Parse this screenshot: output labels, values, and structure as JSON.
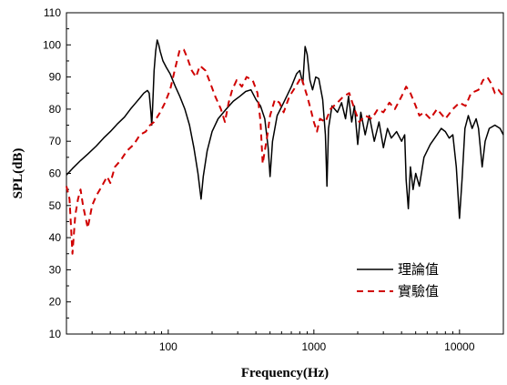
{
  "chart_data": {
    "type": "line",
    "xscale": "log",
    "xlabel": "Frequency(Hz)",
    "ylabel": "SPL(dB)",
    "xlim": [
      20,
      20000
    ],
    "ylim": [
      10,
      110
    ],
    "x_ticks": [
      100,
      1000,
      10000
    ],
    "x_tick_labels": [
      "100",
      "1000",
      "10000"
    ],
    "y_ticks": [
      10,
      20,
      30,
      40,
      50,
      60,
      70,
      80,
      90,
      100,
      110
    ],
    "y_tick_labels": [
      "10",
      "20",
      "30",
      "40",
      "50",
      "60",
      "70",
      "80",
      "90",
      "100",
      "110"
    ],
    "grid": false,
    "legend_position": "right",
    "series": [
      {
        "name": "理論值",
        "color": "#000000",
        "style": "solid",
        "points": [
          [
            20,
            59.5
          ],
          [
            22,
            61.5
          ],
          [
            25,
            64
          ],
          [
            28,
            66
          ],
          [
            32,
            68.5
          ],
          [
            36,
            71
          ],
          [
            40,
            73
          ],
          [
            45,
            75.5
          ],
          [
            50,
            77.5
          ],
          [
            55,
            80
          ],
          [
            60,
            82
          ],
          [
            64,
            83.5
          ],
          [
            68,
            85
          ],
          [
            72,
            85.8
          ],
          [
            74,
            85
          ],
          [
            76,
            79
          ],
          [
            77,
            75
          ],
          [
            78,
            80
          ],
          [
            80,
            92
          ],
          [
            82,
            98
          ],
          [
            84,
            101.5
          ],
          [
            86,
            100
          ],
          [
            88,
            98
          ],
          [
            92,
            95
          ],
          [
            97,
            93
          ],
          [
            103,
            91
          ],
          [
            112,
            87
          ],
          [
            120,
            84
          ],
          [
            130,
            80
          ],
          [
            140,
            75
          ],
          [
            150,
            68
          ],
          [
            160,
            60
          ],
          [
            168,
            52
          ],
          [
            174,
            59
          ],
          [
            185,
            67
          ],
          [
            200,
            73
          ],
          [
            220,
            77
          ],
          [
            250,
            80
          ],
          [
            280,
            82.5
          ],
          [
            310,
            84
          ],
          [
            340,
            85.5
          ],
          [
            370,
            86
          ],
          [
            400,
            83
          ],
          [
            430,
            81
          ],
          [
            460,
            77
          ],
          [
            485,
            68
          ],
          [
            500,
            59
          ],
          [
            520,
            70
          ],
          [
            560,
            78
          ],
          [
            620,
            82
          ],
          [
            700,
            87
          ],
          [
            760,
            91
          ],
          [
            800,
            92
          ],
          [
            840,
            88
          ],
          [
            870,
            99.5
          ],
          [
            900,
            97
          ],
          [
            940,
            89
          ],
          [
            980,
            86
          ],
          [
            1030,
            90
          ],
          [
            1080,
            89.5
          ],
          [
            1150,
            83
          ],
          [
            1200,
            72
          ],
          [
            1230,
            56
          ],
          [
            1260,
            74
          ],
          [
            1330,
            81
          ],
          [
            1450,
            79
          ],
          [
            1550,
            82
          ],
          [
            1650,
            77
          ],
          [
            1730,
            84
          ],
          [
            1820,
            76
          ],
          [
            1900,
            81
          ],
          [
            2000,
            69
          ],
          [
            2100,
            79
          ],
          [
            2250,
            72
          ],
          [
            2400,
            78
          ],
          [
            2600,
            70
          ],
          [
            2800,
            76
          ],
          [
            3000,
            68
          ],
          [
            3200,
            74
          ],
          [
            3400,
            71
          ],
          [
            3700,
            73
          ],
          [
            4000,
            70
          ],
          [
            4200,
            72
          ],
          [
            4300,
            58
          ],
          [
            4450,
            49
          ],
          [
            4600,
            62
          ],
          [
            4800,
            55
          ],
          [
            5000,
            60
          ],
          [
            5300,
            56
          ],
          [
            5700,
            65
          ],
          [
            6300,
            69
          ],
          [
            7000,
            72
          ],
          [
            7500,
            74
          ],
          [
            8000,
            73
          ],
          [
            8500,
            71
          ],
          [
            9000,
            72
          ],
          [
            9500,
            62
          ],
          [
            10000,
            46
          ],
          [
            10400,
            58
          ],
          [
            10900,
            74
          ],
          [
            11500,
            78
          ],
          [
            12200,
            74
          ],
          [
            13000,
            77
          ],
          [
            13500,
            74
          ],
          [
            14300,
            62
          ],
          [
            15000,
            70
          ],
          [
            16000,
            74
          ],
          [
            17500,
            75
          ],
          [
            19000,
            74
          ],
          [
            20000,
            72
          ]
        ]
      },
      {
        "name": "實驗值",
        "color": "#d00000",
        "style": "dashed",
        "points": [
          [
            20,
            56
          ],
          [
            21,
            52
          ],
          [
            22,
            35
          ],
          [
            23,
            47
          ],
          [
            24,
            52
          ],
          [
            25,
            55
          ],
          [
            26,
            50
          ],
          [
            28,
            43
          ],
          [
            30,
            50
          ],
          [
            32,
            53
          ],
          [
            35,
            56
          ],
          [
            38,
            59
          ],
          [
            40,
            57
          ],
          [
            43,
            62
          ],
          [
            47,
            64
          ],
          [
            52,
            67
          ],
          [
            58,
            69
          ],
          [
            64,
            72
          ],
          [
            70,
            73
          ],
          [
            75,
            75
          ],
          [
            80,
            76
          ],
          [
            88,
            79
          ],
          [
            95,
            82
          ],
          [
            103,
            86
          ],
          [
            112,
            93
          ],
          [
            120,
            98.5
          ],
          [
            128,
            98.5
          ],
          [
            135,
            96
          ],
          [
            145,
            92
          ],
          [
            155,
            90
          ],
          [
            165,
            93.5
          ],
          [
            180,
            92
          ],
          [
            195,
            88
          ],
          [
            210,
            84
          ],
          [
            230,
            80
          ],
          [
            245,
            76
          ],
          [
            260,
            82
          ],
          [
            275,
            86
          ],
          [
            295,
            89
          ],
          [
            320,
            87
          ],
          [
            345,
            90
          ],
          [
            380,
            89
          ],
          [
            410,
            85
          ],
          [
            430,
            76
          ],
          [
            445,
            63
          ],
          [
            460,
            67
          ],
          [
            480,
            72
          ],
          [
            500,
            78
          ],
          [
            540,
            83
          ],
          [
            580,
            82
          ],
          [
            620,
            79
          ],
          [
            680,
            84
          ],
          [
            750,
            87
          ],
          [
            820,
            90
          ],
          [
            900,
            84
          ],
          [
            950,
            80
          ],
          [
            1000,
            76
          ],
          [
            1050,
            73
          ],
          [
            1100,
            77
          ],
          [
            1200,
            76
          ],
          [
            1300,
            80
          ],
          [
            1450,
            82
          ],
          [
            1600,
            84
          ],
          [
            1750,
            85
          ],
          [
            1900,
            80
          ],
          [
            2050,
            76
          ],
          [
            2250,
            78
          ],
          [
            2500,
            77
          ],
          [
            2750,
            80
          ],
          [
            3000,
            79
          ],
          [
            3300,
            82
          ],
          [
            3600,
            80
          ],
          [
            4000,
            84
          ],
          [
            4300,
            87
          ],
          [
            4600,
            85
          ],
          [
            5000,
            81
          ],
          [
            5300,
            78
          ],
          [
            5700,
            79
          ],
          [
            6300,
            77
          ],
          [
            7000,
            80
          ],
          [
            8000,
            77
          ],
          [
            9000,
            80
          ],
          [
            10000,
            82
          ],
          [
            11000,
            81
          ],
          [
            12000,
            85
          ],
          [
            13500,
            86
          ],
          [
            14500,
            89
          ],
          [
            15500,
            90
          ],
          [
            16500,
            88
          ],
          [
            17500,
            85
          ],
          [
            18500,
            86
          ],
          [
            20000,
            84
          ]
        ]
      }
    ]
  }
}
